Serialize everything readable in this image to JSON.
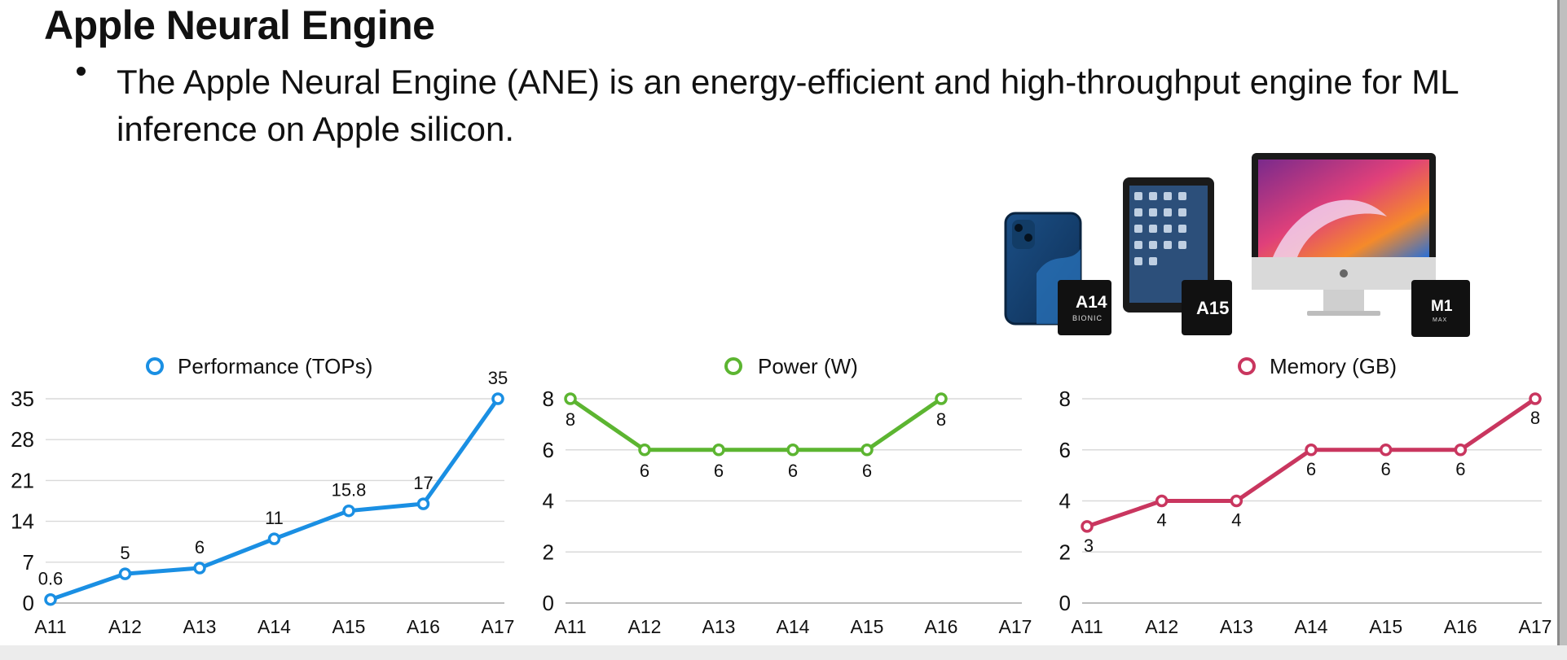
{
  "page": {
    "title": "Apple Neural Engine",
    "bullet": "The Apple Neural Engine (ANE) is an energy-efficient and high-throughput engine for ML inference on Apple silicon."
  },
  "devices": {
    "iphone": {
      "icon": "iphone-icon",
      "chip_label": "A14",
      "chip_sub": "BIONIC"
    },
    "ipad": {
      "icon": "ipad-icon",
      "chip_label": "A15"
    },
    "imac": {
      "icon": "imac-icon",
      "chip_label": "M1",
      "chip_sub": "MAX"
    }
  },
  "chart_data": [
    {
      "type": "line",
      "title": "Performance (TOPs)",
      "color": "#1a8fe3",
      "categories": [
        "A11",
        "A12",
        "A13",
        "A14",
        "A15",
        "A16",
        "A17"
      ],
      "values": [
        0.6,
        5,
        6,
        11,
        15.8,
        17,
        35
      ],
      "data_labels": [
        "0.6",
        "5",
        "6",
        "11",
        "15.8",
        "17",
        "35"
      ],
      "yticks": [
        0,
        7,
        14,
        21,
        28,
        35
      ],
      "ylim": [
        0,
        35
      ],
      "grid": true
    },
    {
      "type": "line",
      "title": "Power (W)",
      "color": "#5cb531",
      "categories": [
        "A11",
        "A12",
        "A13",
        "A14",
        "A15",
        "A16",
        "A17"
      ],
      "values": [
        8,
        6,
        6,
        6,
        6,
        8,
        null
      ],
      "data_labels": [
        "8",
        "6",
        "6",
        "6",
        "6",
        "8",
        ""
      ],
      "yticks": [
        0,
        2,
        4,
        6,
        8
      ],
      "ylim": [
        0,
        8
      ],
      "grid": true
    },
    {
      "type": "line",
      "title": "Memory (GB)",
      "color": "#c9365f",
      "categories": [
        "A11",
        "A12",
        "A13",
        "A14",
        "A15",
        "A16",
        "A17"
      ],
      "values": [
        3,
        4,
        4,
        6,
        6,
        6,
        8
      ],
      "data_labels": [
        "3",
        "4",
        "4",
        "6",
        "6",
        "6",
        "8"
      ],
      "yticks": [
        0,
        2,
        4,
        6,
        8
      ],
      "ylim": [
        0,
        8
      ],
      "grid": true
    }
  ]
}
